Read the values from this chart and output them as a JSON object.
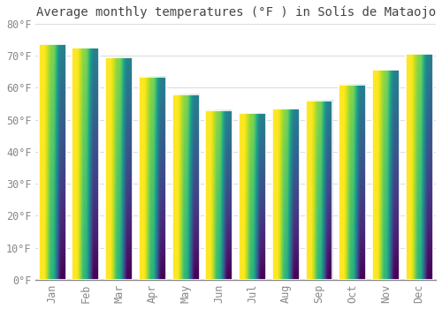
{
  "title": "Average monthly temperatures (°F ) in Solís de Mataojo",
  "months": [
    "Jan",
    "Feb",
    "Mar",
    "Apr",
    "May",
    "Jun",
    "Jul",
    "Aug",
    "Sep",
    "Oct",
    "Nov",
    "Dec"
  ],
  "values": [
    73.5,
    72.5,
    69.5,
    63.5,
    58.0,
    53.0,
    52.0,
    53.5,
    56.0,
    61.0,
    65.5,
    70.5
  ],
  "bar_color_top": "#FFA500",
  "bar_color_bottom": "#FFD070",
  "bar_edge_color": "#E8E8E8",
  "background_color": "#FFFFFF",
  "grid_color": "#DDDDDD",
  "ylim": [
    0,
    80
  ],
  "yticks": [
    0,
    10,
    20,
    30,
    40,
    50,
    60,
    70,
    80
  ],
  "title_fontsize": 10,
  "tick_fontsize": 8.5,
  "font_family": "monospace",
  "tick_color": "#888888",
  "title_color": "#444444"
}
